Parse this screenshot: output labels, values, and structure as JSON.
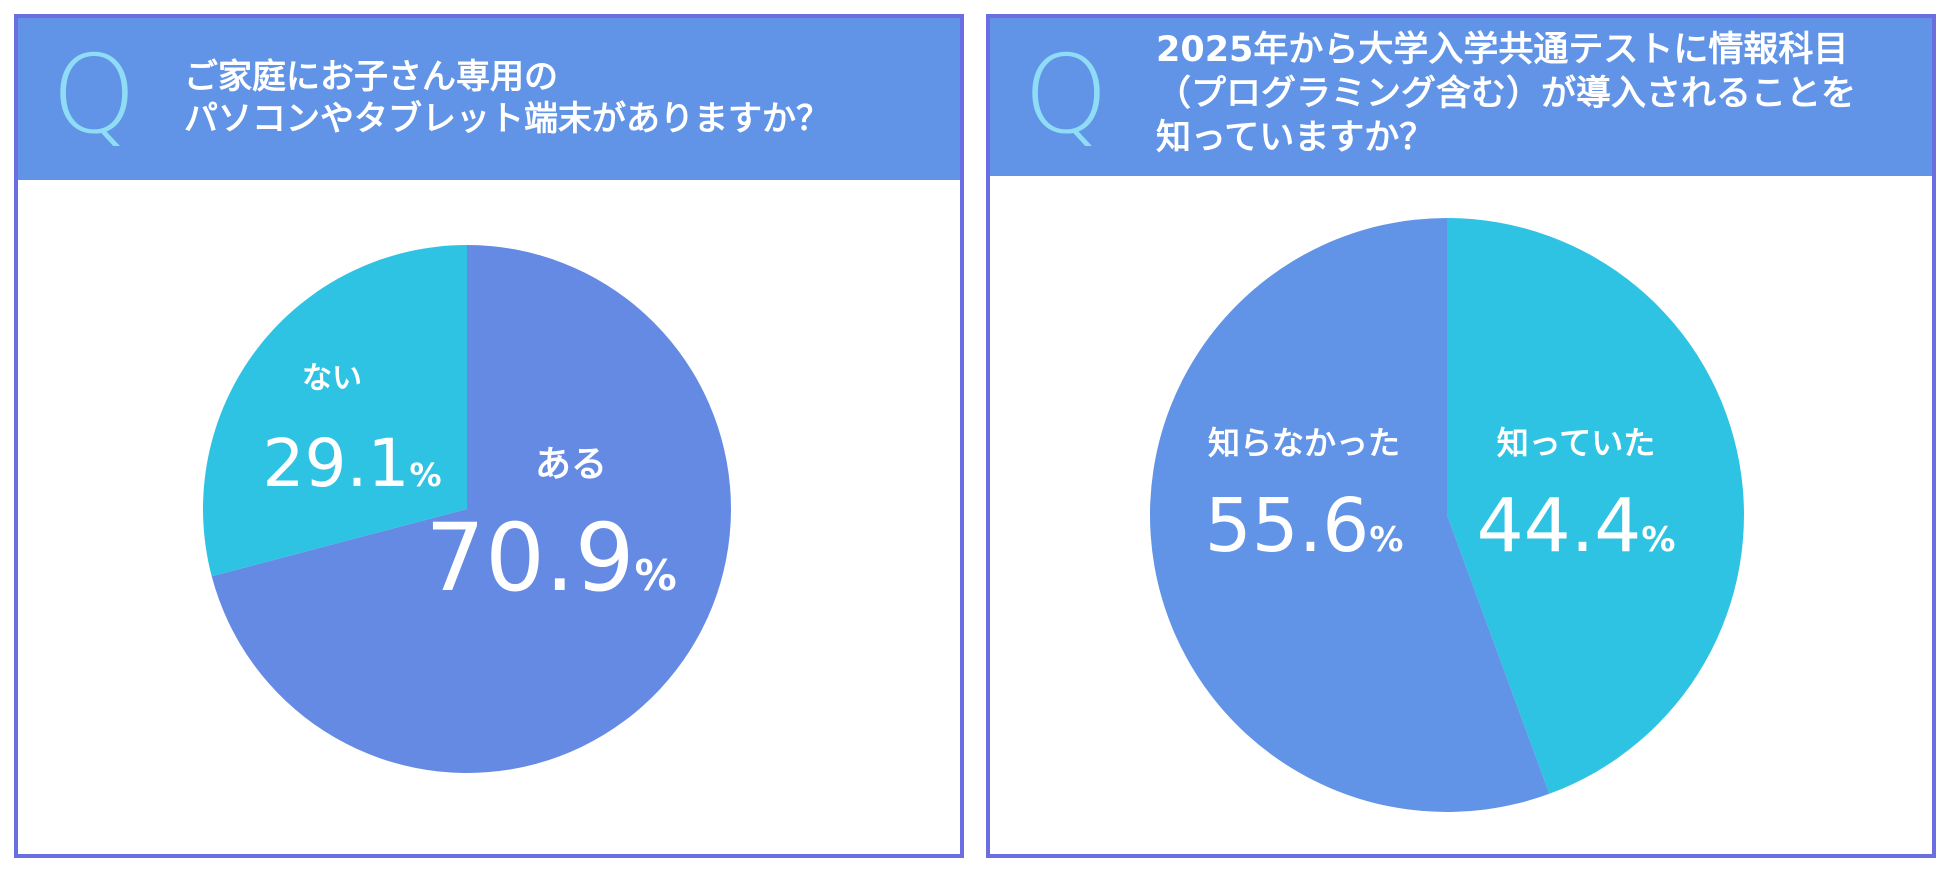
{
  "panels": [
    {
      "q_mark": "Q",
      "question_lines": [
        "ご家庭にお子さん専用の",
        "パソコンやタブレット端末がありますか？"
      ]
    },
    {
      "q_mark": "Q",
      "question_lines": [
        "2025年から大学入学共通テストに情報科目",
        "（プログラミング含む）が導入されることを",
        "知っていますか？"
      ]
    }
  ],
  "colors": {
    "border": "#6a6ee0",
    "header": "#6193e6",
    "q_mark": "#8fdcf6",
    "blue_slice": "#648ae3",
    "blue_slice_2": "#6193e6",
    "cyan_slice": "#2fc3e3"
  },
  "chart_data": [
    {
      "type": "pie",
      "slices": [
        {
          "label": "ある",
          "value": 70.9,
          "value_text": "70.9",
          "unit": "%",
          "color": "#648ae3"
        },
        {
          "label": "ない",
          "value": 29.1,
          "value_text": "29.1",
          "unit": "%",
          "color": "#2fc3e3"
        }
      ],
      "start_angle_deg": 0,
      "direction": "clockwise"
    },
    {
      "type": "pie",
      "slices": [
        {
          "label": "知っていた",
          "value": 44.4,
          "value_text": "44.4",
          "unit": "%",
          "color": "#2fc3e3"
        },
        {
          "label": "知らなかった",
          "value": 55.6,
          "value_text": "55.6",
          "unit": "%",
          "color": "#6193e6"
        }
      ],
      "start_angle_deg": 0,
      "direction": "clockwise"
    }
  ]
}
